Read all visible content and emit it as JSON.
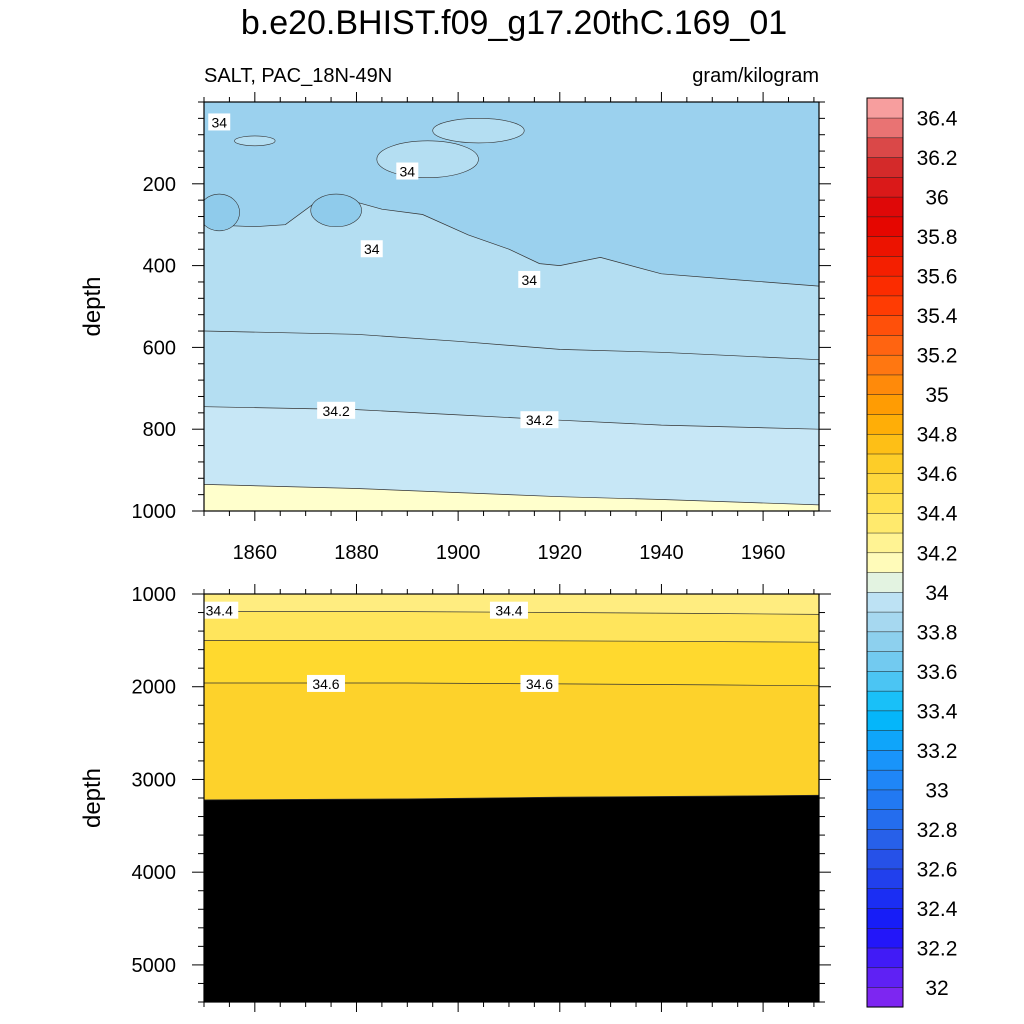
{
  "chart_data": {
    "type": "heatmap",
    "title": "b.e20.BHIST.f09_g17.20thC.169_01",
    "variable_label": "SALT, PAC_18N-49N",
    "units_label": "gram/kilogram",
    "x_range": [
      1850,
      1971
    ],
    "x_ticks": [
      "1860",
      "1880",
      "1900",
      "1920",
      "1940",
      "1960"
    ],
    "panels": [
      {
        "name": "upper",
        "ylabel": "depth",
        "ylim": [
          0,
          1000
        ],
        "y_inverted": true,
        "y_ticks": [
          "200",
          "400",
          "600",
          "800",
          "1000"
        ],
        "contour_labels": [
          {
            "text": "34",
            "x": 1853,
            "y": 50
          },
          {
            "text": "34",
            "x": 1890,
            "y": 170
          },
          {
            "text": "34",
            "x": 1883,
            "y": 360
          },
          {
            "text": "34",
            "x": 1914,
            "y": 435
          },
          {
            "text": "34.2",
            "x": 1876,
            "y": 755
          },
          {
            "text": "34.2",
            "x": 1916,
            "y": 778
          }
        ]
      },
      {
        "name": "lower",
        "ylabel": "depth",
        "ylim": [
          1000,
          5400
        ],
        "y_inverted": true,
        "y_ticks": [
          "1000",
          "2000",
          "3000",
          "4000",
          "5000"
        ],
        "contour_labels": [
          {
            "text": "34.4",
            "x": 1853,
            "y": 1180
          },
          {
            "text": "34.4",
            "x": 1910,
            "y": 1180
          },
          {
            "text": "34.6",
            "x": 1874,
            "y": 1970
          },
          {
            "text": "34.6",
            "x": 1916,
            "y": 1970
          }
        ]
      }
    ],
    "colorbar": {
      "min": 32,
      "max": 36.6,
      "step": 0.1,
      "labels": [
        "36.4",
        "36.2",
        "36",
        "35.8",
        "35.6",
        "35.4",
        "35.2",
        "35",
        "34.8",
        "34.6",
        "34.4",
        "34.2",
        "34",
        "33.8",
        "33.6",
        "33.4",
        "33.2",
        "33",
        "32.8",
        "32.6",
        "32.4",
        "32.2",
        "32"
      ]
    }
  }
}
